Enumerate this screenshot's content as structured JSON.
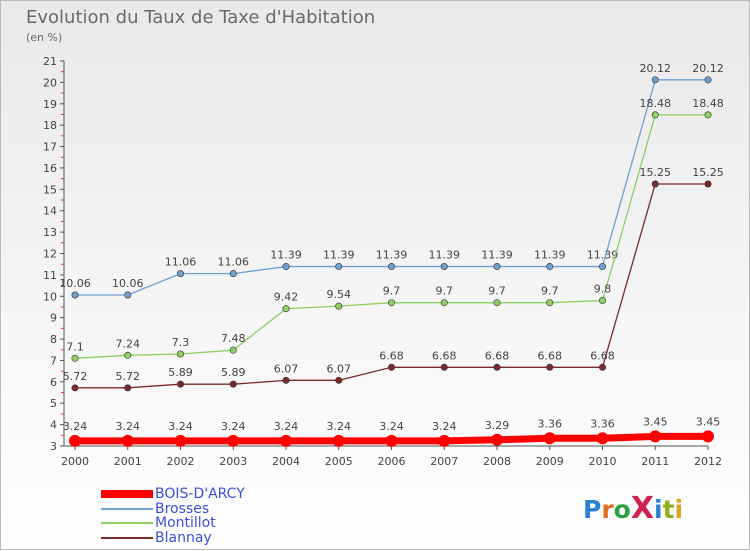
{
  "title": "Evolution du Taux de Taxe d'Habitation",
  "subtitle": "(en %)",
  "logo_text": "ProXiti",
  "chart_data": {
    "type": "line",
    "title": "Evolution du Taux de Taxe d'Habitation",
    "ylabel": "(en %)",
    "xlabel": "",
    "x": [
      "2000",
      "2001",
      "2002",
      "2003",
      "2004",
      "2005",
      "2006",
      "2007",
      "2008",
      "2009",
      "2010",
      "2011",
      "2012"
    ],
    "ylim": [
      3,
      21
    ],
    "yticks": [
      3,
      4,
      5,
      6,
      7,
      8,
      9,
      10,
      11,
      12,
      13,
      14,
      15,
      16,
      17,
      18,
      19,
      20,
      21
    ],
    "grid": false,
    "legend_position": "bottom-left",
    "series": [
      {
        "name": "BOIS-D'ARCY",
        "color": "#ff0000",
        "values": [
          3.24,
          3.24,
          3.24,
          3.24,
          3.24,
          3.24,
          3.24,
          3.24,
          3.29,
          3.36,
          3.36,
          3.45,
          3.45
        ],
        "labels": [
          "3.24",
          "3.24",
          "3.24",
          "3.24",
          "3.24",
          "3.24",
          "3.24",
          "3.24",
          "3.29",
          "3.36",
          "3.36",
          "3.45",
          "3.45"
        ]
      },
      {
        "name": "Brosses",
        "color": "#6fa0d0",
        "values": [
          10.06,
          10.06,
          11.06,
          11.06,
          11.39,
          11.39,
          11.39,
          11.39,
          11.39,
          11.39,
          11.39,
          20.12,
          20.12
        ],
        "labels": [
          "10.06",
          "10.06",
          "11.06",
          "11.06",
          "11.39",
          "11.39",
          "11.39",
          "11.39",
          "11.39",
          "11.39",
          "11.39",
          "20.12",
          "20.12"
        ]
      },
      {
        "name": "Montillot",
        "color": "#8fd060",
        "values": [
          7.1,
          7.24,
          7.3,
          7.48,
          9.42,
          9.54,
          9.7,
          9.7,
          9.7,
          9.7,
          9.8,
          18.48,
          18.48
        ],
        "labels": [
          "7.1",
          "7.24",
          "7.3",
          "7.48",
          "9.42",
          "9.54",
          "9.7",
          "9.7",
          "9.7",
          "9.7",
          "9.8",
          "18.48",
          "18.48"
        ]
      },
      {
        "name": "Blannay",
        "color": "#7a2a2a",
        "values": [
          5.72,
          5.72,
          5.89,
          5.89,
          6.07,
          6.07,
          6.68,
          6.68,
          6.68,
          6.68,
          6.68,
          15.25,
          15.25
        ],
        "labels": [
          "5.72",
          "5.72",
          "5.89",
          "5.89",
          "6.07",
          "6.07",
          "6.68",
          "6.68",
          "6.68",
          "6.68",
          "6.68",
          "15.25",
          "15.25"
        ]
      }
    ]
  }
}
